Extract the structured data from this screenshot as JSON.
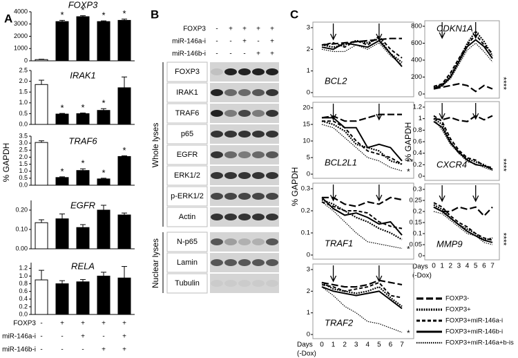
{
  "chart_data": [
    {
      "type": "bar",
      "title": "FOXP3",
      "values": [
        100,
        3200,
        3600,
        3200,
        3300
      ],
      "errors": [
        30,
        100,
        80,
        60,
        100
      ],
      "colors": [
        "#ffffff",
        "#000000",
        "#000000",
        "#000000",
        "#000000"
      ],
      "annotations": [
        null,
        "*",
        "*",
        "*",
        "*"
      ],
      "ylim": [
        0,
        4000
      ],
      "yticks": [
        0,
        1000,
        2000,
        3000,
        4000
      ]
    },
    {
      "type": "bar",
      "title": "IRAK1",
      "values": [
        1.85,
        0.48,
        0.5,
        0.65,
        1.7
      ],
      "errors": [
        0.2,
        0.03,
        0.03,
        0.08,
        0.5
      ],
      "colors": [
        "#ffffff",
        "#000000",
        "#000000",
        "#000000",
        "#000000"
      ],
      "annotations": [
        null,
        "*",
        "*",
        "*",
        null
      ],
      "ylim": [
        0,
        2.5
      ],
      "yticks": [
        {
          "value": 0,
          "label": "0.0"
        },
        0.5,
        {
          "value": 1,
          "label": "1.0"
        },
        1.5,
        {
          "value": 2,
          "label": "2.0"
        },
        2.5
      ]
    },
    {
      "type": "bar",
      "title": "TRAF6",
      "values": [
        3.05,
        0.55,
        1.05,
        0.45,
        2.05
      ],
      "errors": [
        0.12,
        0.05,
        0.12,
        0.05,
        0.05
      ],
      "colors": [
        "#ffffff",
        "#000000",
        "#000000",
        "#000000",
        "#000000"
      ],
      "annotations": [
        null,
        "*",
        "*",
        "*",
        "*"
      ],
      "ylim": [
        0,
        3.5
      ],
      "yticks": [
        {
          "value": 0,
          "label": "0.0"
        },
        0.5,
        {
          "value": 1,
          "label": "1.0"
        },
        1.5,
        {
          "value": 2,
          "label": "2.0"
        },
        2.5,
        {
          "value": 3,
          "label": "3.0"
        },
        3.5
      ]
    },
    {
      "type": "bar",
      "title": "EGFR",
      "values": [
        0.135,
        0.155,
        0.11,
        0.2,
        0.175
      ],
      "errors": [
        0.015,
        0.025,
        0.015,
        0.025,
        0.01
      ],
      "colors": [
        "#ffffff",
        "#000000",
        "#000000",
        "#000000",
        "#000000"
      ],
      "annotations": [
        null,
        null,
        null,
        null,
        null
      ],
      "ylim": [
        0,
        0.25
      ],
      "yticks": [
        {
          "value": 0,
          "label": "0.00"
        },
        {
          "value": 0.1,
          "label": "0.10"
        },
        {
          "value": 0.2,
          "label": "0.20"
        }
      ]
    },
    {
      "type": "bar",
      "title": "RELA",
      "values": [
        0.9,
        0.8,
        0.85,
        1.0,
        0.95
      ],
      "errors": [
        0.25,
        0.08,
        0.06,
        0.1,
        0.3
      ],
      "colors": [
        "#ffffff",
        "#000000",
        "#000000",
        "#000000",
        "#000000"
      ],
      "annotations": [
        null,
        null,
        null,
        null,
        null
      ],
      "ylim": [
        0,
        1.35
      ],
      "yticks": [
        {
          "value": 0,
          "label": "0.0"
        },
        0.2,
        0.4,
        0.6,
        0.8,
        {
          "value": 1,
          "label": "1.0"
        },
        1.2
      ]
    },
    {
      "type": "line",
      "title": "BCL2",
      "x": [
        0,
        1,
        2,
        3,
        4,
        5,
        6,
        7
      ],
      "xlim": [
        0,
        7
      ],
      "ylim": [
        0,
        3
      ],
      "yticks": [
        0,
        1,
        2,
        3
      ],
      "arrows": [
        1,
        5
      ],
      "annotations": [],
      "series": [
        {
          "values": [
            2.2,
            2.25,
            2.3,
            2.35,
            2.4,
            2.45,
            2.5,
            2.5
          ]
        },
        {
          "values": [
            2.2,
            2.1,
            2.2,
            2.4,
            2.3,
            2.5,
            1.8,
            1.4
          ]
        },
        {
          "values": [
            2.2,
            2.3,
            2.1,
            2.4,
            2.2,
            2.6,
            2.0,
            1.6
          ]
        },
        {
          "values": [
            2.1,
            2.0,
            2.3,
            2.2,
            2.1,
            2.4,
            1.8,
            1.2
          ]
        },
        {
          "values": [
            2.0,
            1.9,
            1.9,
            2.2,
            2.0,
            2.3,
            1.7,
            1.3
          ]
        }
      ]
    },
    {
      "type": "line",
      "title": "BCL2L1",
      "x": [
        0,
        1,
        2,
        3,
        4,
        5,
        6,
        7
      ],
      "xlim": [
        0,
        7
      ],
      "ylim": [
        0,
        20
      ],
      "yticks": [
        0,
        5,
        10,
        15,
        20
      ],
      "arrows": [
        1,
        5
      ],
      "annotations": [
        "**",
        "*"
      ],
      "series": [
        {
          "values": [
            17,
            17.5,
            16,
            16,
            17,
            18,
            18,
            18
          ]
        },
        {
          "values": [
            16,
            15,
            13,
            9,
            8,
            7,
            4,
            3
          ]
        },
        {
          "values": [
            16,
            16,
            14,
            10,
            7,
            6,
            5,
            3
          ]
        },
        {
          "values": [
            17,
            17,
            14,
            14,
            8,
            9,
            8,
            4
          ]
        },
        {
          "values": [
            15,
            14,
            11,
            8,
            5,
            4,
            2,
            1
          ]
        }
      ]
    },
    {
      "type": "line",
      "title": "TRAF1",
      "x": [
        0,
        1,
        2,
        3,
        4,
        5,
        6,
        7
      ],
      "xlim": [
        0,
        7
      ],
      "ylim": [
        0,
        0.3
      ],
      "yticks": [
        0,
        0.1,
        0.2,
        0.3
      ],
      "arrows": [
        1,
        5
      ],
      "annotations": [
        "*"
      ],
      "series": [
        {
          "values": [
            0.26,
            0.26,
            0.23,
            0.22,
            0.24,
            0.23,
            0.26,
            0.25
          ]
        },
        {
          "values": [
            0.25,
            0.23,
            0.2,
            0.17,
            0.15,
            0.12,
            0.1,
            0.07
          ]
        },
        {
          "values": [
            0.24,
            0.22,
            0.2,
            0.2,
            0.19,
            0.15,
            0.13,
            0.12
          ]
        },
        {
          "values": [
            0.26,
            0.21,
            0.18,
            0.19,
            0.17,
            0.14,
            0.15,
            0.09
          ]
        },
        {
          "values": [
            0.24,
            0.2,
            0.15,
            0.1,
            0.06,
            0.05,
            0.04,
            0.03
          ]
        }
      ]
    },
    {
      "type": "line",
      "title": "TRAF2",
      "x": [
        0,
        1,
        2,
        3,
        4,
        5,
        6,
        7
      ],
      "xlim": [
        0,
        7
      ],
      "xticks": [
        0,
        1,
        2,
        3,
        4,
        5,
        6,
        7
      ],
      "ylim": [
        0,
        3
      ],
      "yticks": [
        0,
        1,
        2,
        3
      ],
      "arrows": [
        1,
        5
      ],
      "annotations": [
        "*"
      ],
      "series": [
        {
          "values": [
            2.4,
            2.3,
            2.2,
            2.2,
            2.3,
            2.5,
            2.4,
            2.3
          ]
        },
        {
          "values": [
            2.4,
            2.1,
            2.0,
            1.9,
            2.0,
            2.2,
            1.7,
            1.3
          ]
        },
        {
          "values": [
            2.3,
            2.2,
            2.0,
            2.1,
            2.2,
            2.4,
            1.8,
            1.7
          ]
        },
        {
          "values": [
            2.2,
            2.0,
            1.9,
            1.8,
            1.9,
            2.0,
            1.6,
            1.2
          ]
        },
        {
          "values": [
            2.2,
            1.8,
            1.3,
            1.0,
            0.6,
            0.5,
            0.3,
            0.1
          ]
        }
      ]
    },
    {
      "type": "line",
      "title": "CDKN1A",
      "x": [
        0,
        1,
        2,
        3,
        4,
        5,
        6,
        7
      ],
      "xlim": [
        0,
        7
      ],
      "ylim": [
        0,
        800
      ],
      "yticks": [
        0,
        200,
        400,
        600,
        800
      ],
      "arrows": [
        1,
        5
      ],
      "annotations": [
        "****"
      ],
      "series": [
        {
          "values": [
            60,
            80,
            100,
            120,
            100,
            30,
            100,
            60
          ]
        },
        {
          "values": [
            80,
            110,
            220,
            400,
            600,
            740,
            620,
            450
          ]
        },
        {
          "values": [
            90,
            120,
            250,
            420,
            580,
            700,
            580,
            480
          ]
        },
        {
          "values": [
            70,
            100,
            200,
            380,
            560,
            640,
            560,
            420
          ]
        },
        {
          "values": [
            60,
            90,
            180,
            350,
            520,
            600,
            500,
            380
          ]
        }
      ]
    },
    {
      "type": "line",
      "title": "CXCR4",
      "x": [
        0,
        1,
        2,
        3,
        4,
        5,
        6,
        7
      ],
      "xlim": [
        0,
        7
      ],
      "ylim": [
        0,
        1.2
      ],
      "yticks": [
        0,
        0.2,
        0.4,
        0.6,
        0.8,
        1,
        1.2
      ],
      "arrows": [
        1,
        5
      ],
      "annotations": [
        "****"
      ],
      "series": [
        {
          "values": [
            1.0,
            0.98,
            1.02,
            0.97,
            0.95,
            1.05,
            0.98,
            1.05
          ]
        },
        {
          "values": [
            1.0,
            0.9,
            0.6,
            0.4,
            0.3,
            0.25,
            0.2,
            0.12
          ]
        },
        {
          "values": [
            1.05,
            0.95,
            0.65,
            0.45,
            0.32,
            0.28,
            0.18,
            0.15
          ]
        },
        {
          "values": [
            0.95,
            0.85,
            0.58,
            0.42,
            0.28,
            0.2,
            0.18,
            0.12
          ]
        },
        {
          "values": [
            1.0,
            0.8,
            0.55,
            0.4,
            0.25,
            0.22,
            0.15,
            0.1
          ]
        }
      ]
    },
    {
      "type": "line",
      "title": "MMP9",
      "x": [
        0,
        1,
        2,
        3,
        4,
        5,
        6,
        7
      ],
      "xlim": [
        0,
        7
      ],
      "xticks": [
        0,
        1,
        2,
        3,
        4,
        5,
        6,
        7
      ],
      "ylim": [
        0,
        0.3
      ],
      "yticks": [
        0,
        0.05,
        0.1,
        0.15,
        0.2,
        0.25,
        0.3
      ],
      "arrows": [
        1,
        5
      ],
      "annotations": [
        "****"
      ],
      "series": [
        {
          "values": [
            0.22,
            0.2,
            0.2,
            0.22,
            0.21,
            0.22,
            0.18,
            0.22
          ]
        },
        {
          "values": [
            0.23,
            0.21,
            0.17,
            0.14,
            0.12,
            0.1,
            0.07,
            0.08
          ]
        },
        {
          "values": [
            0.24,
            0.22,
            0.18,
            0.15,
            0.13,
            0.1,
            0.08,
            0.07
          ]
        },
        {
          "values": [
            0.22,
            0.2,
            0.17,
            0.14,
            0.11,
            0.09,
            0.07,
            0.06
          ]
        },
        {
          "values": [
            0.2,
            0.19,
            0.16,
            0.13,
            0.1,
            0.09,
            0.06,
            0.05
          ]
        }
      ]
    }
  ],
  "panel_a": {
    "label": "A",
    "y_label": "% GAPDH",
    "conditions": [
      {
        "name": "FOXP3",
        "signs": [
          "-",
          "+",
          "+",
          "+",
          "+"
        ]
      },
      {
        "name": "miR-146a-i",
        "signs": [
          "-",
          "-",
          "+",
          "-",
          "+"
        ]
      },
      {
        "name": "miR-146b-i",
        "signs": [
          "-",
          "-",
          "-",
          "+",
          "+"
        ]
      }
    ]
  },
  "panel_b": {
    "label": "B",
    "conditions": [
      {
        "name": "FOXP3",
        "signs": [
          "-",
          "+",
          "+",
          "+",
          "+"
        ]
      },
      {
        "name": "miR-146a-i",
        "signs": [
          "-",
          "-",
          "+",
          "-",
          "+"
        ]
      },
      {
        "name": "miR-146b-i",
        "signs": [
          "-",
          "-",
          "-",
          "+",
          "+"
        ]
      }
    ],
    "groups": [
      {
        "label": "Whole lyses",
        "rows": [
          "FOXP3",
          "IRAK1",
          "TRAF6",
          "p65",
          "EGFR",
          "ERK1/2",
          "p-ERK1/2",
          "Actin"
        ]
      },
      {
        "label": "Nuclear lyses",
        "rows": [
          "N-p65",
          "Lamin",
          "Tubulin"
        ]
      }
    ]
  },
  "panel_c": {
    "label": "C",
    "y_label_left": "% GAPDH",
    "y_label_right": "% GAPDH",
    "x_label_left": [
      "Days",
      "(-Dox)"
    ],
    "x_label_right": [
      "Days",
      "(-Dox)"
    ],
    "legend": [
      {
        "name": "FOXP3-",
        "color": "#000000",
        "dash": "10,4",
        "width": 2.2
      },
      {
        "name": "FOXP3+",
        "color": "#000000",
        "dash": "2,1.5",
        "width": 2.2
      },
      {
        "name": "FOXP3+miR-146a-i",
        "color": "#000000",
        "dash": "5,3",
        "width": 2
      },
      {
        "name": "FOXP3+miR-146b-i",
        "color": "#000000",
        "dash": "none",
        "width": 2
      },
      {
        "name": "FOXP3+miR-146a+b-is",
        "color": "#000000",
        "dash": "1.5,1.5",
        "width": 1.2
      }
    ]
  }
}
